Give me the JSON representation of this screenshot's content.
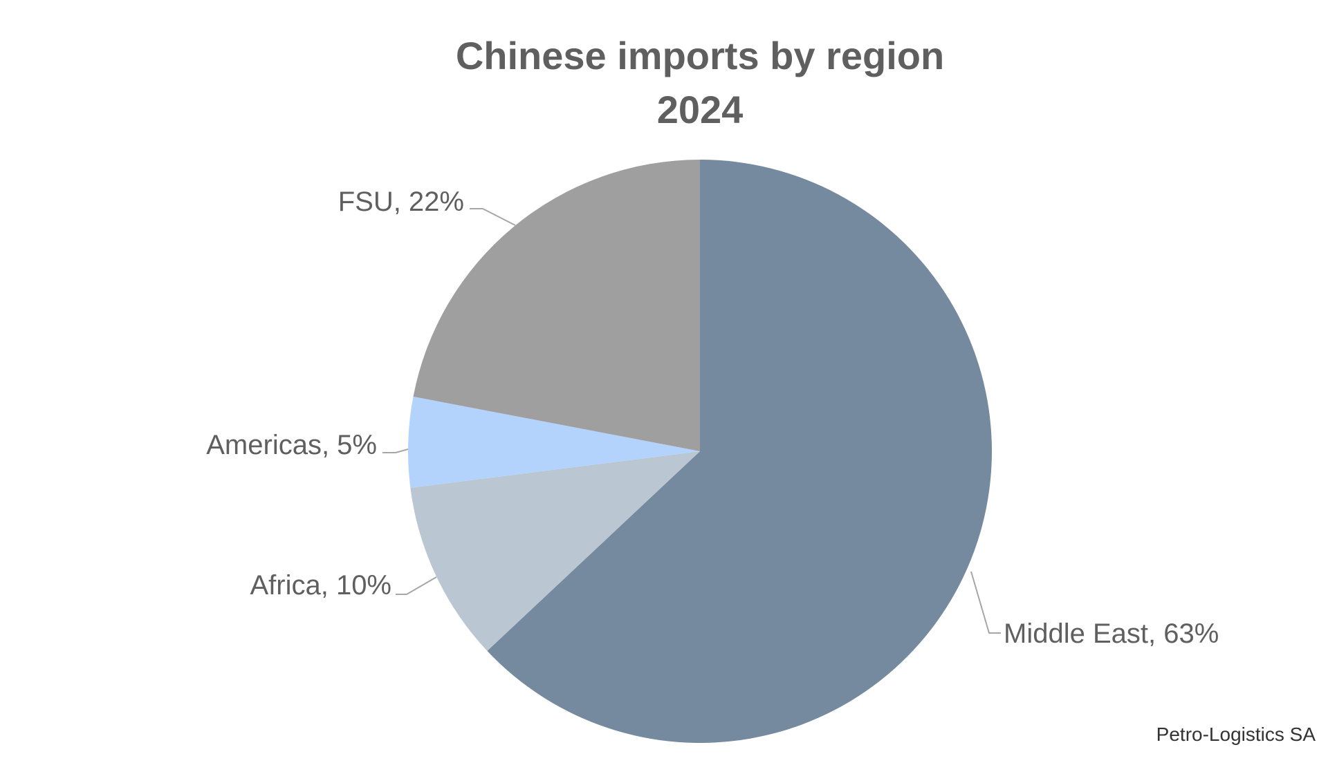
{
  "chart_data": {
    "type": "pie",
    "title": "Chinese imports by region",
    "subtitle": "2024",
    "slices": [
      {
        "label": "Middle East",
        "value": 63,
        "display": "Middle East, 63%",
        "color": "#758a9f"
      },
      {
        "label": "Africa",
        "value": 10,
        "display": "Africa, 10%",
        "color": "#bac7d2"
      },
      {
        "label": "Americas",
        "value": 5,
        "display": "Americas, 5%",
        "color": "#b3d3fc"
      },
      {
        "label": "FSU",
        "value": 22,
        "display": "FSU, 22%",
        "color": "#a09fa0"
      }
    ],
    "start_angle": "12 o'clock",
    "direction": "clockwise",
    "legend": "none",
    "data_labels": "outside with leader lines"
  },
  "source": "Petro-Logistics SA"
}
